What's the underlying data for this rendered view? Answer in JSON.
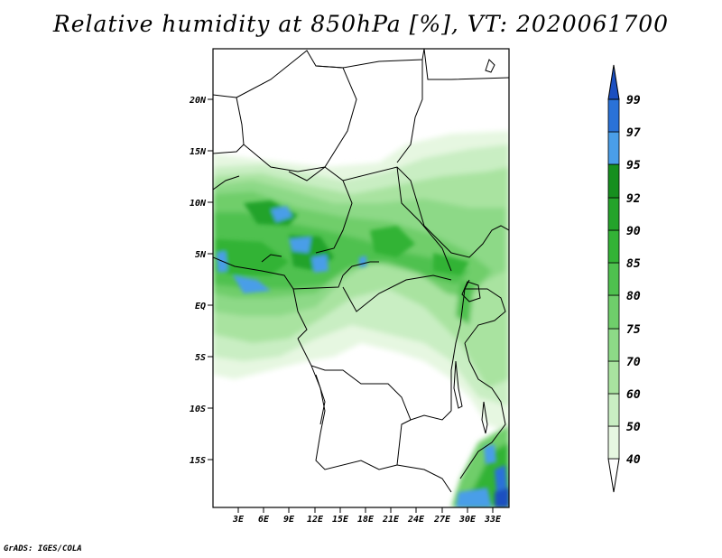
{
  "title": "Relative humidity at 850hPa [%], VT: 2020061700",
  "credit": "GrADS: IGES/COLA",
  "map": {
    "lat_ticks": [
      "20N",
      "15N",
      "10N",
      "5N",
      "EQ",
      "5S",
      "10S",
      "15S"
    ],
    "lon_ticks": [
      "3E",
      "6E",
      "9E",
      "12E",
      "15E",
      "18E",
      "21E",
      "24E",
      "27E",
      "30E",
      "33E"
    ]
  },
  "colorbar": {
    "levels": [
      "40",
      "50",
      "60",
      "70",
      "75",
      "80",
      "85",
      "90",
      "92",
      "95",
      "97",
      "99"
    ],
    "colors": [
      "#ffffff",
      "#e6f7e1",
      "#c9eec3",
      "#a9e3a0",
      "#8dd987",
      "#6fce6b",
      "#4fc14f",
      "#33b336",
      "#24a32b",
      "#168f1f",
      "#4a9ee8",
      "#2a72d8",
      "#1b4fc0"
    ]
  }
}
